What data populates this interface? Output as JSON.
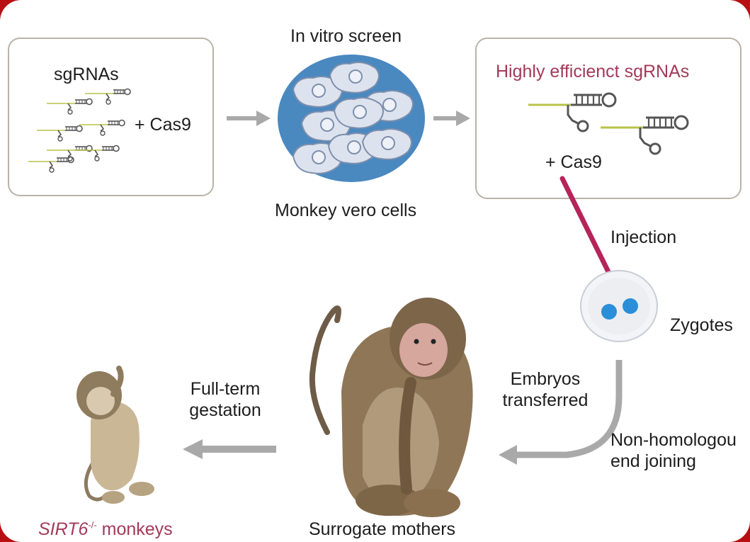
{
  "labels": {
    "sgrnas": "sgRNAs",
    "plus_cas9_left": "+ Cas9",
    "in_vitro_screen": "In vitro screen",
    "monkey_vero_cells": "Monkey vero cells",
    "highly_efficient": "Highly efficienct sgRNAs",
    "plus_cas9_right": "+ Cas9",
    "injection": "Injection",
    "zygotes": "Zygotes",
    "embryos_line1": "Embryos",
    "embryos_line2": "transferred",
    "nhej_line1": "Non-homologou",
    "nhej_line2": "end joining",
    "full_term_line1": "Full-term",
    "full_term_line2": "gestation",
    "surrogate_mothers": "Surrogate mothers",
    "sirt6_gene": "SIRT6",
    "sirt6_superscript": "-/-",
    "sirt6_suffix": " monkeys"
  },
  "colors": {
    "border": "#b80f12",
    "accent_pink": "#a23a5a",
    "injection_line": "#b5245a",
    "cell_dish": "#4a88c0",
    "zygote_nuclei": "#2a8ed8",
    "arrow_gray": "#a9a9a9",
    "guide_green": "#b8c34a"
  },
  "icons": {
    "sgrna": "sgrna-hairpin-icon",
    "cells": "cell-dish-icon",
    "zygote": "zygote-icon",
    "adult_monkey": "macaque-adult-icon",
    "infant_monkey": "macaque-infant-icon"
  }
}
